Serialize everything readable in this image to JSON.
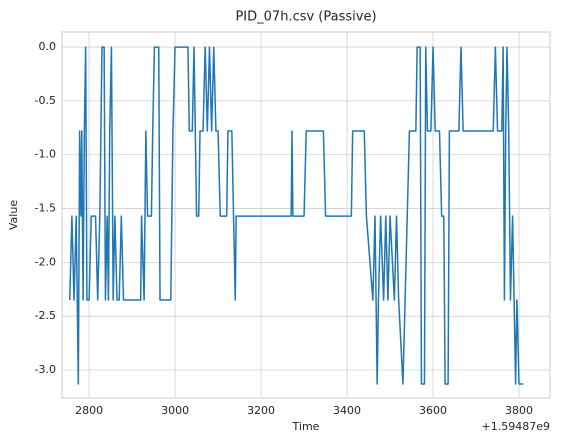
{
  "chart_data": {
    "type": "line",
    "title": "PID_07h.csv (Passive)",
    "x_label": "Time",
    "y_label": "Value",
    "x_offset_label": "+1.59487e9",
    "xlim": [
      2737,
      3872
    ],
    "ylim": [
      0.14,
      -3.26
    ],
    "xticks": [
      2800,
      3000,
      3200,
      3400,
      3600,
      3800
    ],
    "yticks": [
      {
        "value": 0,
        "label": "0.0"
      },
      -0.5,
      {
        "value": -1,
        "label": "-1.0"
      },
      -1.5,
      {
        "value": -2,
        "label": "-2.0"
      },
      -2.5,
      {
        "value": -3,
        "label": "-3.0"
      }
    ],
    "grid": true,
    "series": [
      {
        "name": "PID_07h",
        "color": "#1f77b4",
        "x": [
          2755,
          2760,
          2765,
          2770,
          2775,
          2778,
          2781,
          2783,
          2786,
          2789,
          2792,
          2795,
          2800,
          2805,
          2815,
          2820,
          2825,
          2830,
          2835,
          2838,
          2842,
          2845,
          2848,
          2852,
          2856,
          2860,
          2865,
          2870,
          2875,
          2880,
          2920,
          2922,
          2928,
          2932,
          2936,
          2945,
          2948,
          2952,
          2962,
          2965,
          2990,
          2995,
          3000,
          3030,
          3033,
          3040,
          3044,
          3050,
          3055,
          3058,
          3065,
          3070,
          3075,
          3080,
          3085,
          3090,
          3095,
          3100,
          3105,
          3120,
          3123,
          3132,
          3136,
          3140,
          3142,
          3270,
          3272,
          3274,
          3300,
          3305,
          3345,
          3350,
          3410,
          3413,
          3440,
          3445,
          3460,
          3465,
          3470,
          3473,
          3478,
          3485,
          3490,
          3495,
          3500,
          3510,
          3515,
          3520,
          3530,
          3535,
          3540,
          3545,
          3560,
          3563,
          3570,
          3573,
          3580,
          3583,
          3587,
          3595,
          3600,
          3605,
          3615,
          3620,
          3625,
          3628,
          3635,
          3638,
          3660,
          3665,
          3670,
          3740,
          3745,
          3750,
          3760,
          3763,
          3766,
          3769,
          3772,
          3776,
          3780,
          3785,
          3792,
          3795,
          3800,
          3810
        ],
        "values": [
          -2.35,
          -1.57,
          -2.35,
          -1.57,
          -3.13,
          -0.78,
          -1.57,
          -0.78,
          -2.35,
          -0.78,
          0,
          -2.35,
          -2.35,
          -1.57,
          -1.57,
          -2.35,
          -1.57,
          0,
          0,
          -2.35,
          -1.57,
          -2.35,
          -0.78,
          0,
          -2.35,
          -1.57,
          -2.35,
          -2.35,
          -1.57,
          -2.35,
          -2.35,
          -1.57,
          -2.35,
          -0.78,
          -1.57,
          -1.57,
          -0.78,
          0,
          0,
          -2.35,
          -2.35,
          -0.78,
          0,
          0,
          -0.78,
          -0.78,
          0,
          -1.57,
          -1.57,
          -0.78,
          -0.78,
          0,
          -0.78,
          0,
          -0.78,
          0,
          -0.78,
          -0.78,
          -1.57,
          -1.57,
          -0.78,
          -0.78,
          -1.57,
          -2.35,
          -1.57,
          -1.57,
          -0.78,
          -1.57,
          -1.57,
          -0.78,
          -0.78,
          -1.57,
          -1.57,
          -0.78,
          -0.78,
          -1.57,
          -2.35,
          -1.57,
          -3.13,
          -2.35,
          -1.57,
          -2.35,
          -1.57,
          -2.35,
          -1.57,
          -2.35,
          -1.57,
          -2.35,
          -3.13,
          -2.35,
          -1.57,
          -0.78,
          -0.78,
          0,
          0,
          -3.13,
          -3.13,
          0,
          -0.78,
          -0.78,
          0,
          -0.78,
          -0.78,
          -1.57,
          -1.57,
          -3.13,
          -3.13,
          -0.78,
          -0.78,
          0,
          -0.78,
          -0.78,
          0,
          -0.78,
          -0.78,
          0,
          -2.35,
          -0.78,
          0,
          -0.78,
          -2.35,
          -1.57,
          -3.13,
          -2.35,
          -3.13,
          -3.13
        ]
      }
    ]
  }
}
